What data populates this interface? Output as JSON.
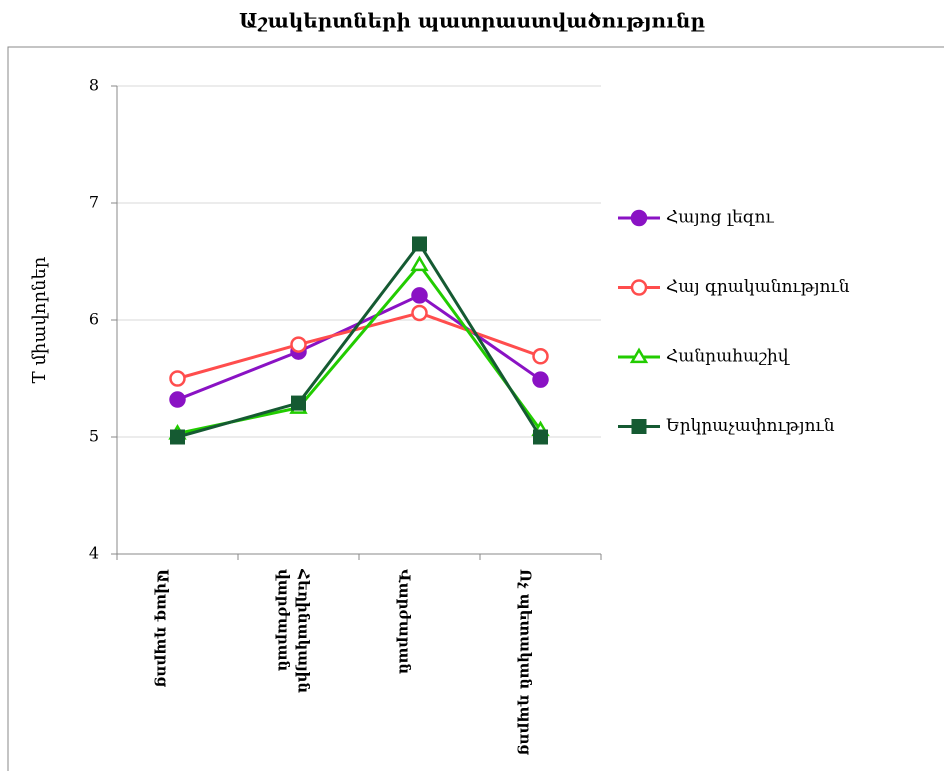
{
  "chart_data": {
    "type": "line",
    "title": "Աշակերտների պատրաստվածությունը",
    "ylabel": "T միավորներ",
    "categories": [
      "Ավագ դպրոց",
      "Հեղինակային վարժարան",
      "Վարժարան",
      "Ոչ պետական դպրոց"
    ],
    "series": [
      {
        "name": "Հայոց լեզու",
        "color": "#8a12c4",
        "marker": "circle",
        "values": [
          5.32,
          5.73,
          6.21,
          5.49
        ]
      },
      {
        "name": "Հայ գրականություն",
        "color": "#ff4d4d",
        "marker": "circle-open",
        "values": [
          5.5,
          5.79,
          6.06,
          5.69
        ]
      },
      {
        "name": "Հանրահաշիվ",
        "color": "#22cc00",
        "marker": "triangle-open",
        "values": [
          5.03,
          5.25,
          6.47,
          5.06
        ]
      },
      {
        "name": "Երկրաչափություն",
        "color": "#155a32",
        "marker": "square",
        "values": [
          5.0,
          5.29,
          6.65,
          5.0
        ]
      }
    ],
    "ylim": [
      4,
      8
    ],
    "yticks": [
      4,
      5,
      6,
      7,
      8
    ],
    "grid": true,
    "legend": "right"
  }
}
